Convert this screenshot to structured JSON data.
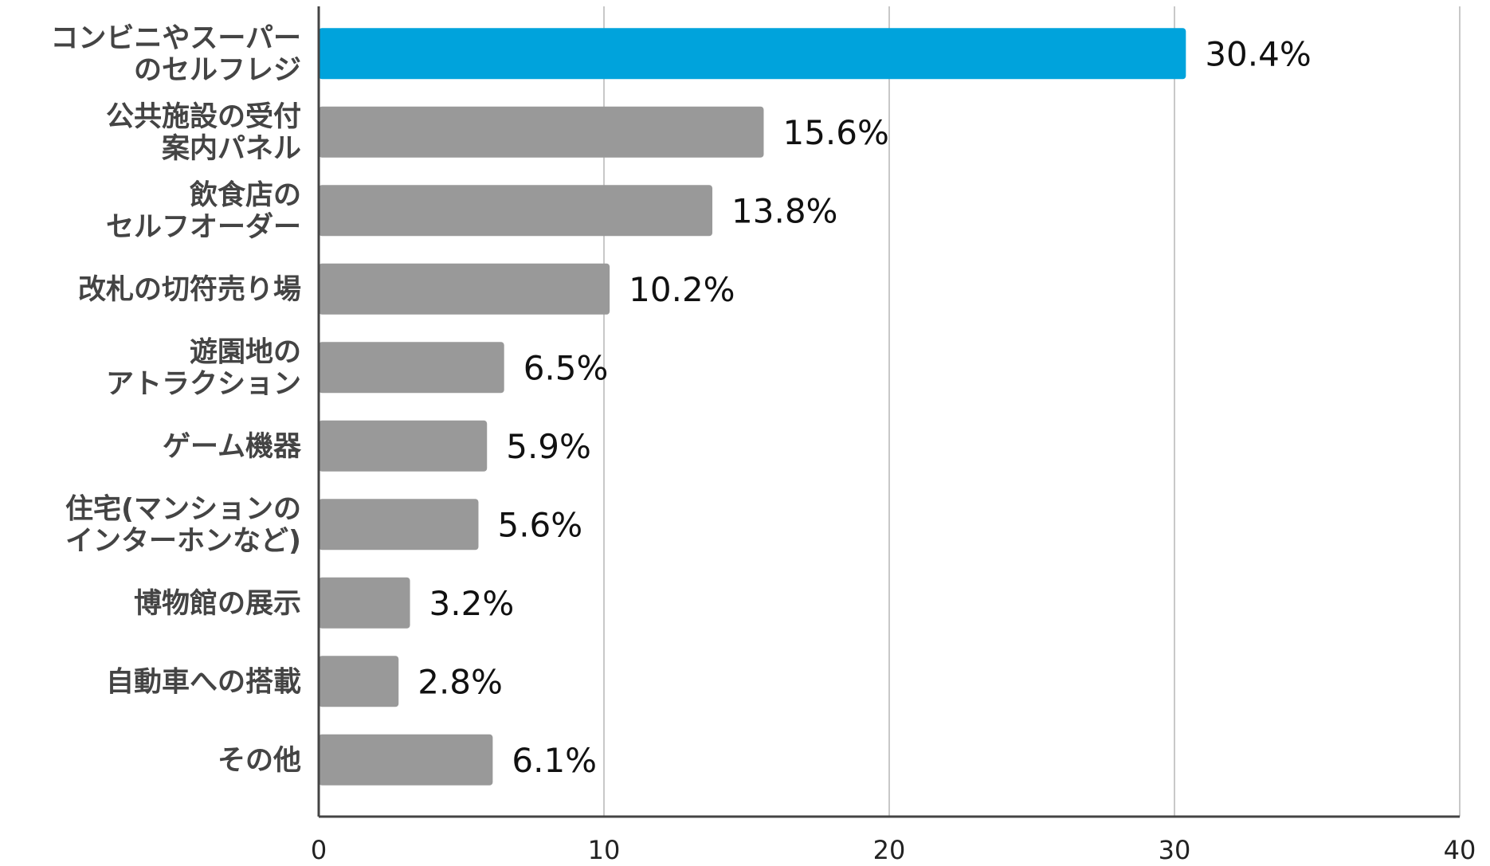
{
  "chart_data": {
    "type": "bar",
    "orientation": "horizontal",
    "categories": [
      [
        "コンビニやスーパー",
        "のセルフレジ"
      ],
      [
        "公共施設の受付",
        "案内パネル"
      ],
      [
        "飲食店の",
        "セルフオーダー"
      ],
      [
        "改札の切符売り場"
      ],
      [
        "遊園地の",
        "アトラクション"
      ],
      [
        "ゲーム機器"
      ],
      [
        "住宅(マンションの",
        "インターホンなど)"
      ],
      [
        "博物館の展示"
      ],
      [
        "自動車への搭載"
      ],
      [
        "その他"
      ]
    ],
    "values": [
      30.4,
      15.6,
      13.8,
      10.2,
      6.5,
      5.9,
      5.6,
      3.2,
      2.8,
      6.1
    ],
    "value_labels": [
      "30.4%",
      "15.6%",
      "13.8%",
      "10.2%",
      "6.5%",
      "5.9%",
      "5.6%",
      "3.2%",
      "2.8%",
      "6.1%"
    ],
    "xlim": [
      0,
      40
    ],
    "xticks": [
      "0",
      "10",
      "20",
      "30",
      "40"
    ],
    "highlight_index": 0,
    "colors": {
      "highlight": "#00a3dc",
      "bar": "#999999",
      "grid": "#c8c8c8",
      "axis": "#444444"
    },
    "grid": true,
    "title": "",
    "xlabel": "",
    "ylabel": ""
  }
}
